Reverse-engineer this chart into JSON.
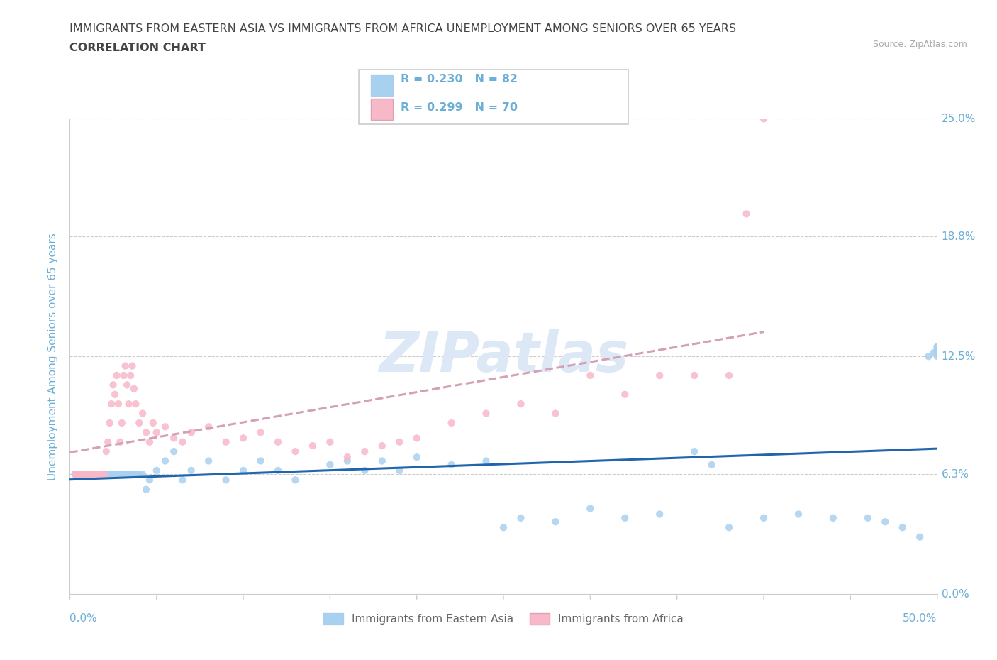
{
  "title_line1": "IMMIGRANTS FROM EASTERN ASIA VS IMMIGRANTS FROM AFRICA UNEMPLOYMENT AMONG SENIORS OVER 65 YEARS",
  "title_line2": "CORRELATION CHART",
  "source_text": "Source: ZipAtlas.com",
  "ylabel": "Unemployment Among Seniors over 65 years",
  "xlim": [
    0.0,
    0.5
  ],
  "ylim": [
    0.0,
    0.25
  ],
  "yticks": [
    0.0,
    0.063,
    0.125,
    0.188,
    0.25
  ],
  "ytick_labels": [
    "0.0%",
    "6.3%",
    "12.5%",
    "18.8%",
    "25.0%"
  ],
  "xticks": [
    0.0,
    0.5
  ],
  "xtick_labels": [
    "0.0%",
    "50.0%"
  ],
  "watermark": "ZIPatlas",
  "legend_entries": [
    {
      "label": "Immigrants from Eastern Asia",
      "R": "0.230",
      "N": "82",
      "color": "#a8d1f0"
    },
    {
      "label": "Immigrants from Africa",
      "R": "0.299",
      "N": "70",
      "color": "#f7b8c8"
    }
  ],
  "eastern_asia_x": [
    0.003,
    0.005,
    0.006,
    0.007,
    0.008,
    0.009,
    0.01,
    0.011,
    0.012,
    0.013,
    0.014,
    0.015,
    0.016,
    0.017,
    0.018,
    0.019,
    0.02,
    0.021,
    0.022,
    0.023,
    0.024,
    0.025,
    0.026,
    0.027,
    0.028,
    0.029,
    0.03,
    0.031,
    0.032,
    0.033,
    0.034,
    0.035,
    0.036,
    0.037,
    0.038,
    0.039,
    0.04,
    0.042,
    0.044,
    0.046,
    0.05,
    0.055,
    0.06,
    0.065,
    0.07,
    0.08,
    0.09,
    0.1,
    0.11,
    0.12,
    0.13,
    0.15,
    0.16,
    0.17,
    0.18,
    0.19,
    0.2,
    0.22,
    0.24,
    0.25,
    0.26,
    0.28,
    0.3,
    0.32,
    0.34,
    0.36,
    0.37,
    0.38,
    0.4,
    0.42,
    0.44,
    0.46,
    0.47,
    0.48,
    0.49,
    0.495,
    0.498,
    0.5,
    0.5,
    0.5,
    0.5,
    0.5
  ],
  "eastern_asia_y": [
    0.063,
    0.063,
    0.063,
    0.063,
    0.063,
    0.063,
    0.063,
    0.063,
    0.063,
    0.063,
    0.063,
    0.063,
    0.063,
    0.063,
    0.063,
    0.063,
    0.063,
    0.063,
    0.063,
    0.063,
    0.063,
    0.063,
    0.063,
    0.063,
    0.063,
    0.063,
    0.063,
    0.063,
    0.063,
    0.063,
    0.063,
    0.063,
    0.063,
    0.063,
    0.063,
    0.063,
    0.063,
    0.063,
    0.055,
    0.06,
    0.065,
    0.07,
    0.075,
    0.06,
    0.065,
    0.07,
    0.06,
    0.065,
    0.07,
    0.065,
    0.06,
    0.068,
    0.07,
    0.065,
    0.07,
    0.065,
    0.072,
    0.068,
    0.07,
    0.035,
    0.04,
    0.038,
    0.045,
    0.04,
    0.042,
    0.075,
    0.068,
    0.035,
    0.04,
    0.042,
    0.04,
    0.04,
    0.038,
    0.035,
    0.03,
    0.125,
    0.127,
    0.13,
    0.125,
    0.128,
    0.127,
    0.13
  ],
  "africa_x": [
    0.003,
    0.004,
    0.005,
    0.006,
    0.007,
    0.008,
    0.009,
    0.01,
    0.011,
    0.012,
    0.013,
    0.014,
    0.015,
    0.016,
    0.017,
    0.018,
    0.019,
    0.02,
    0.021,
    0.022,
    0.023,
    0.024,
    0.025,
    0.026,
    0.027,
    0.028,
    0.029,
    0.03,
    0.031,
    0.032,
    0.033,
    0.034,
    0.035,
    0.036,
    0.037,
    0.038,
    0.04,
    0.042,
    0.044,
    0.046,
    0.048,
    0.05,
    0.055,
    0.06,
    0.065,
    0.07,
    0.08,
    0.09,
    0.1,
    0.11,
    0.12,
    0.13,
    0.14,
    0.15,
    0.16,
    0.17,
    0.18,
    0.19,
    0.2,
    0.22,
    0.24,
    0.26,
    0.28,
    0.3,
    0.32,
    0.34,
    0.36,
    0.38,
    0.39,
    0.4
  ],
  "africa_y": [
    0.063,
    0.063,
    0.063,
    0.063,
    0.063,
    0.063,
    0.063,
    0.063,
    0.063,
    0.063,
    0.063,
    0.063,
    0.063,
    0.063,
    0.063,
    0.063,
    0.063,
    0.063,
    0.075,
    0.08,
    0.09,
    0.1,
    0.11,
    0.105,
    0.115,
    0.1,
    0.08,
    0.09,
    0.115,
    0.12,
    0.11,
    0.1,
    0.115,
    0.12,
    0.108,
    0.1,
    0.09,
    0.095,
    0.085,
    0.08,
    0.09,
    0.085,
    0.088,
    0.082,
    0.08,
    0.085,
    0.088,
    0.08,
    0.082,
    0.085,
    0.08,
    0.075,
    0.078,
    0.08,
    0.072,
    0.075,
    0.078,
    0.08,
    0.082,
    0.09,
    0.095,
    0.1,
    0.095,
    0.115,
    0.105,
    0.115,
    0.115,
    0.115,
    0.2,
    0.25
  ],
  "blue_dot_color": "#a8d1f0",
  "pink_dot_color": "#f7b8c8",
  "blue_line_color": "#2166ac",
  "pink_line_color": "#d4a0b8",
  "grid_color": "#cccccc",
  "title_color": "#444444",
  "ylabel_color": "#6baed6",
  "tick_label_color": "#6baed6",
  "source_color": "#aaaaaa",
  "watermark_color": "#dce8f5"
}
